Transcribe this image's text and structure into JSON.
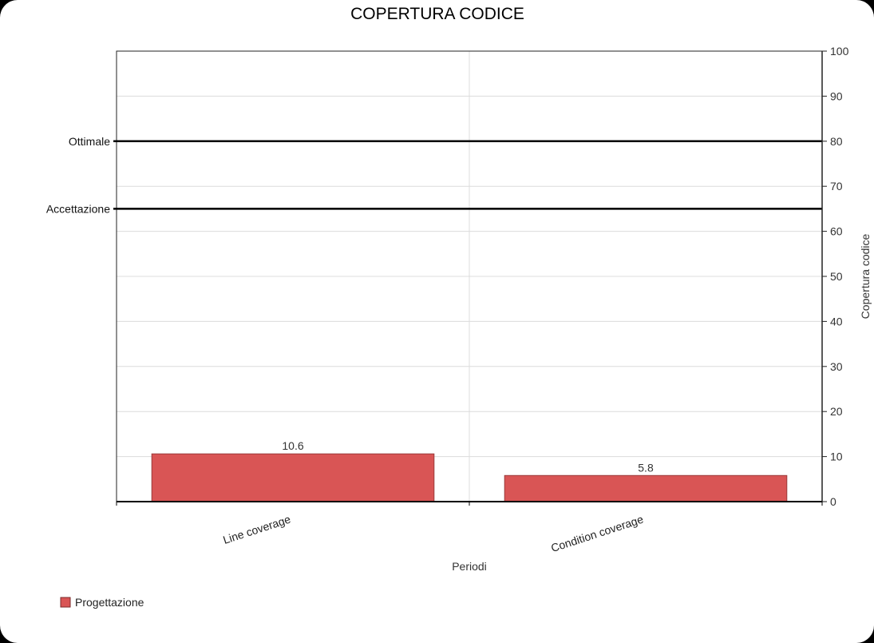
{
  "chart_data": {
    "type": "bar",
    "title": "COPERTURA CODICE",
    "xlabel": "Periodi",
    "ylabel": "Copertura codice",
    "y_axis_side": "right",
    "ylim": [
      0,
      100
    ],
    "yticks": [
      0,
      10,
      20,
      30,
      40,
      50,
      60,
      70,
      80,
      90,
      100
    ],
    "grid": true,
    "categories": [
      "Line coverage",
      "Condition coverage"
    ],
    "series": [
      {
        "name": "Progettazione",
        "color": "#d95555",
        "values": [
          10.6,
          5.8
        ]
      }
    ],
    "data_labels": [
      "10.6",
      "5.8"
    ],
    "reference_lines": [
      {
        "label": "Ottimale",
        "value": 80
      },
      {
        "label": "Accettazione",
        "value": 65
      }
    ],
    "legend_position": "bottom-left"
  }
}
